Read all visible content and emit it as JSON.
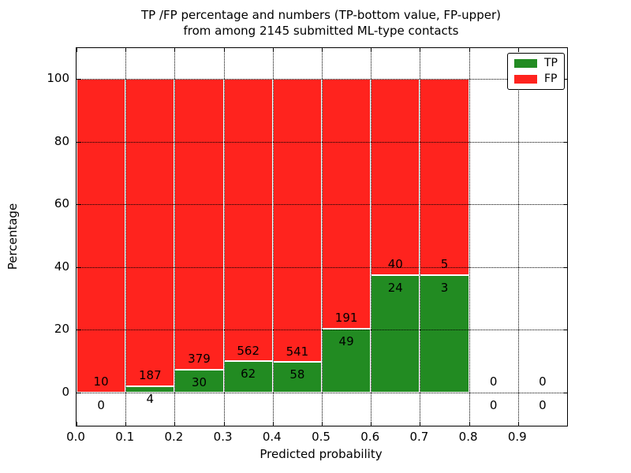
{
  "chart_data": {
    "type": "bar",
    "stacked": true,
    "title_line1": "TP /FP percentage and numbers (TP-bottom value, FP-upper)",
    "title_line2": "from among 2145 submitted ML-type contacts",
    "total_contacts": 2145,
    "xlabel": "Predicted probability",
    "ylabel": "Percentage",
    "xlim": [
      0.0,
      1.0
    ],
    "ylim": [
      -11,
      110
    ],
    "grid": true,
    "grid_style": "dotted",
    "bin_starts": [
      0.0,
      0.1,
      0.2,
      0.3,
      0.4,
      0.5,
      0.6,
      0.7,
      0.8,
      0.9
    ],
    "bin_width": 0.1,
    "x_tick_values": [
      0.0,
      0.1,
      0.2,
      0.3,
      0.4,
      0.5,
      0.6,
      0.7,
      0.8,
      0.9
    ],
    "x_tick_labels": [
      "0.0",
      "0.1",
      "0.2",
      "0.3",
      "0.4",
      "0.5",
      "0.6",
      "0.7",
      "0.8",
      "0.9"
    ],
    "y_tick_values": [
      0,
      20,
      40,
      60,
      80,
      100
    ],
    "y_tick_labels": [
      "0",
      "20",
      "40",
      "60",
      "80",
      "100"
    ],
    "series": [
      {
        "name": "TP",
        "color": "#228b22",
        "counts": [
          0,
          4,
          30,
          62,
          58,
          49,
          24,
          3,
          0,
          0
        ],
        "pct": [
          0,
          2.09,
          7.33,
          9.94,
          9.68,
          20.42,
          37.5,
          37.5,
          0,
          0
        ]
      },
      {
        "name": "FP",
        "color": "#ff231e",
        "counts": [
          10,
          187,
          379,
          562,
          541,
          191,
          40,
          5,
          0,
          0
        ],
        "pct": [
          100,
          97.91,
          92.67,
          90.06,
          90.32,
          79.58,
          62.5,
          62.5,
          0,
          0
        ]
      }
    ],
    "legend": {
      "position": "upper right",
      "entries": [
        {
          "label": "TP",
          "color": "#228b22"
        },
        {
          "label": "FP",
          "color": "#ff231e"
        }
      ]
    },
    "colors": {
      "tp": "#228b22",
      "fp": "#ff231e",
      "grid": "#000000",
      "background": "#ffffff",
      "text": "#000000"
    }
  }
}
